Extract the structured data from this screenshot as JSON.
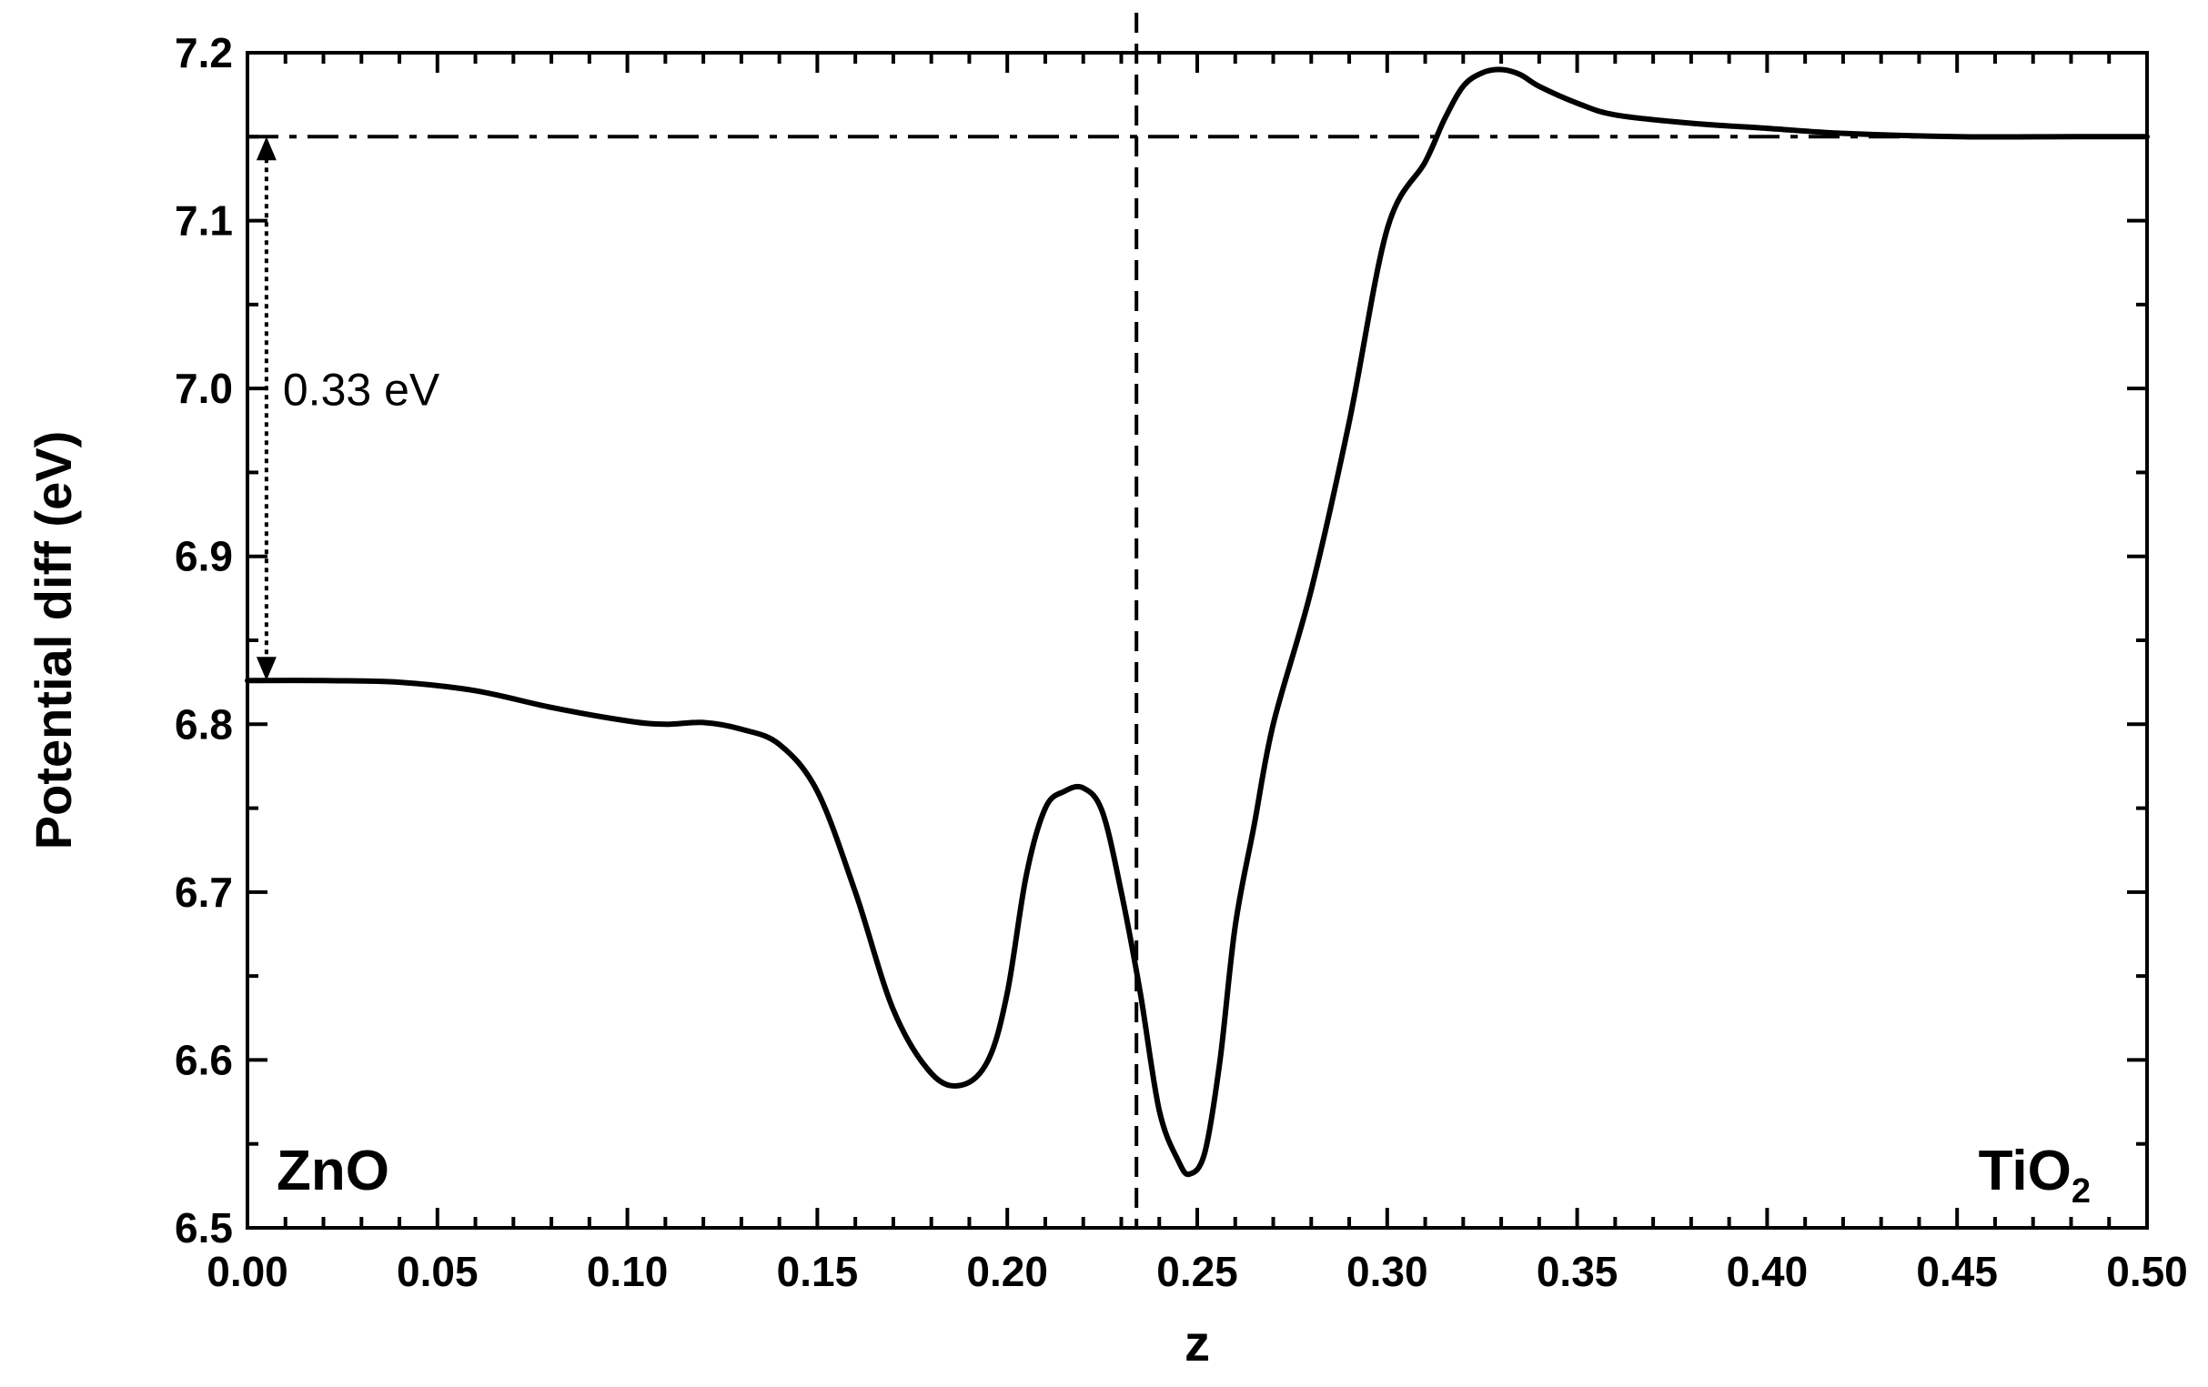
{
  "chart_data": {
    "type": "line",
    "title": "",
    "xlabel": "z",
    "ylabel": "Potential diff (eV)",
    "xlim": [
      0.0,
      0.5
    ],
    "ylim": [
      6.5,
      7.2
    ],
    "x_ticks": [
      "0.00",
      "0.05",
      "0.10",
      "0.15",
      "0.20",
      "0.25",
      "0.30",
      "0.35",
      "0.40",
      "0.45",
      "0.50"
    ],
    "y_ticks": [
      "6.5",
      "6.6",
      "6.7",
      "6.8",
      "6.9",
      "7.0",
      "7.1",
      "7.2"
    ],
    "grid": false,
    "legend": "none",
    "series": [
      {
        "x": [
          0.0,
          0.02,
          0.04,
          0.06,
          0.08,
          0.1,
          0.11,
          0.12,
          0.13,
          0.14,
          0.15,
          0.16,
          0.17,
          0.18,
          0.188,
          0.195,
          0.2,
          0.205,
          0.21,
          0.215,
          0.22,
          0.225,
          0.23,
          0.235,
          0.24,
          0.245,
          0.248,
          0.252,
          0.256,
          0.26,
          0.265,
          0.27,
          0.28,
          0.29,
          0.3,
          0.31,
          0.315,
          0.32,
          0.325,
          0.33,
          0.335,
          0.34,
          0.35,
          0.36,
          0.38,
          0.4,
          0.42,
          0.45,
          0.48,
          0.5
        ],
        "y": [
          6.826,
          6.826,
          6.825,
          6.82,
          6.81,
          6.802,
          6.8,
          6.801,
          6.797,
          6.788,
          6.76,
          6.7,
          6.63,
          6.592,
          6.585,
          6.6,
          6.64,
          6.71,
          6.75,
          6.76,
          6.762,
          6.748,
          6.7,
          6.64,
          6.57,
          6.54,
          6.532,
          6.545,
          6.6,
          6.68,
          6.74,
          6.8,
          6.88,
          6.98,
          7.095,
          7.135,
          7.16,
          7.18,
          7.188,
          7.19,
          7.187,
          7.18,
          7.17,
          7.163,
          7.158,
          7.155,
          7.152,
          7.15,
          7.15,
          7.15
        ]
      }
    ],
    "reference_lines": {
      "horizontal_dashdot_y": 7.15,
      "vertical_dashed_x": 0.234
    },
    "annotations": {
      "gap_label": "0.33 eV",
      "gap_from_y": 6.826,
      "gap_to_y": 7.15,
      "gap_arrow_x": 0.005,
      "left_region": "ZnO",
      "right_region_base": "TiO",
      "right_region_sub": "2"
    }
  }
}
